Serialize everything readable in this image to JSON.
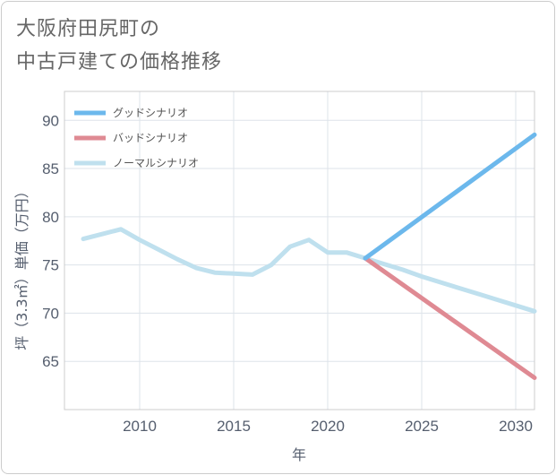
{
  "title_lines": [
    "大阪府田尻町の",
    "中古戸建ての価格推移"
  ],
  "chart_data": {
    "type": "line",
    "title": "大阪府田尻町の中古戸建ての価格推移",
    "xlabel": "年",
    "ylabel": "坪（3.3㎡）単価（万円）",
    "xlim": [
      2006,
      2031
    ],
    "ylim": [
      60,
      93
    ],
    "x_ticks": [
      2010,
      2015,
      2020,
      2025,
      2030
    ],
    "y_ticks": [
      65,
      70,
      75,
      80,
      85,
      90
    ],
    "grid": true,
    "legend_position": "top-left",
    "series": [
      {
        "name": "グッドシナリオ",
        "color": "#6cb8ec",
        "x": [
          2022,
          2031
        ],
        "y": [
          75.7,
          88.5
        ]
      },
      {
        "name": "バッドシナリオ",
        "color": "#df8a93",
        "x": [
          2022,
          2031
        ],
        "y": [
          75.7,
          63.3
        ]
      },
      {
        "name": "ノーマルシナリオ",
        "color": "#bfe0ee",
        "x": [
          2007,
          2008,
          2009,
          2010,
          2011,
          2012,
          2013,
          2014,
          2015,
          2016,
          2017,
          2018,
          2019,
          2020,
          2021,
          2022,
          2023,
          2024,
          2025,
          2026,
          2027,
          2028,
          2029,
          2030,
          2031
        ],
        "y": [
          77.7,
          78.2,
          78.7,
          77.6,
          76.6,
          75.6,
          74.7,
          74.2,
          74.1,
          74.0,
          75.0,
          76.9,
          77.6,
          76.3,
          76.3,
          75.7,
          75.1,
          74.5,
          73.8,
          73.2,
          72.6,
          72.0,
          71.4,
          70.8,
          70.2
        ]
      }
    ]
  }
}
